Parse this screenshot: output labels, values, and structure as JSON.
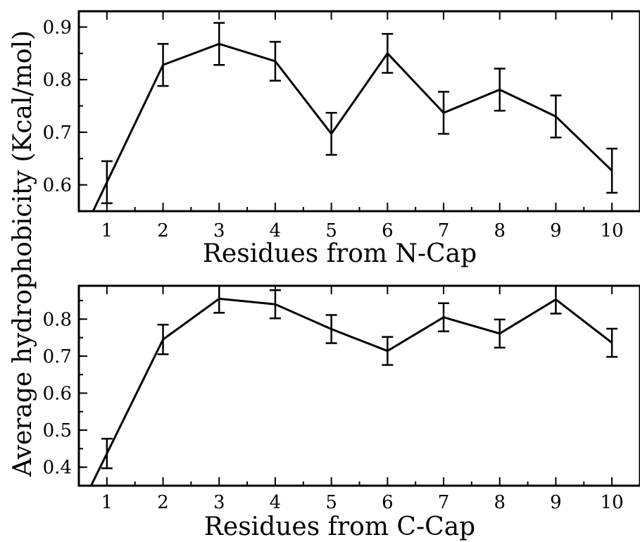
{
  "ylabel": "Average hydrophobicity (Kcal/mol)",
  "chart_data": [
    {
      "type": "line",
      "xlabel": "Residues from N-Cap",
      "x": [
        1,
        2,
        3,
        4,
        5,
        6,
        7,
        8,
        9,
        10
      ],
      "xticks": [
        "1",
        "2",
        "3",
        "4",
        "5",
        "6",
        "7",
        "8",
        "9",
        "10"
      ],
      "xlim": [
        0.5,
        10.5
      ],
      "ylim": [
        0.55,
        0.93
      ],
      "yticks": [
        0.6,
        0.7,
        0.8,
        0.9
      ],
      "ytick_labels": [
        "0.6",
        "0.7",
        "0.8",
        "0.9"
      ],
      "series": [
        {
          "values": [
            0.605,
            0.828,
            0.868,
            0.835,
            0.697,
            0.85,
            0.737,
            0.781,
            0.73,
            0.627
          ],
          "errors": [
            0.04,
            0.04,
            0.04,
            0.037,
            0.04,
            0.037,
            0.04,
            0.04,
            0.04,
            0.042
          ],
          "color": "#000000"
        }
      ],
      "extends_below_axis": true,
      "grid": false
    },
    {
      "type": "line",
      "xlabel": "Residues from C-Cap",
      "x": [
        1,
        2,
        3,
        4,
        5,
        6,
        7,
        8,
        9,
        10
      ],
      "xticks": [
        "1",
        "2",
        "3",
        "4",
        "5",
        "6",
        "7",
        "8",
        "9",
        "10"
      ],
      "xlim": [
        0.5,
        10.5
      ],
      "ylim": [
        0.35,
        0.89
      ],
      "yticks": [
        0.4,
        0.5,
        0.6,
        0.7,
        0.8
      ],
      "ytick_labels": [
        "0.4",
        "0.5",
        "0.6",
        "0.7",
        "0.8"
      ],
      "series": [
        {
          "values": [
            0.437,
            0.745,
            0.855,
            0.84,
            0.773,
            0.714,
            0.805,
            0.761,
            0.853,
            0.736
          ],
          "errors": [
            0.04,
            0.04,
            0.038,
            0.038,
            0.038,
            0.038,
            0.038,
            0.038,
            0.038,
            0.038
          ],
          "color": "#000000"
        }
      ],
      "extends_below_axis": true,
      "grid": false
    }
  ]
}
